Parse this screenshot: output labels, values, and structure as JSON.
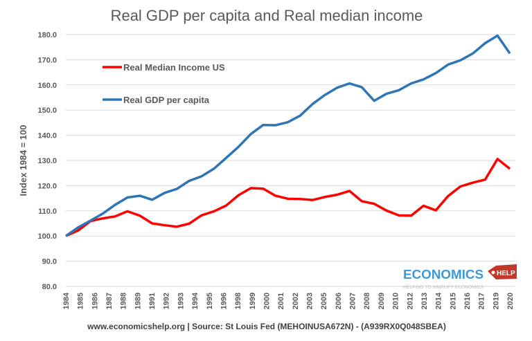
{
  "chart_data": {
    "type": "line",
    "title": "Real GDP per capita and Real median income",
    "ylabel": "Index 1984 = 100",
    "xlabel": "",
    "ylim": [
      80,
      180
    ],
    "yticks": [
      "80.0",
      "90.0",
      "100.0",
      "110.0",
      "120.0",
      "130.0",
      "140.0",
      "150.0",
      "160.0",
      "170.0",
      "180.0"
    ],
    "xtick_labels": [
      "1984",
      "1985",
      "1986",
      "1987",
      "1988",
      "1989",
      "1991",
      "1992",
      "1993",
      "1994",
      "1995",
      "1996",
      "1998",
      "1999",
      "2000",
      "2001",
      "2002",
      "2003",
      "2005",
      "2006",
      "2007",
      "2008",
      "2009",
      "2010",
      "2012",
      "2013",
      "2014",
      "2015",
      "2016",
      "2017",
      "2019",
      "2020"
    ],
    "x": [
      1984,
      1985,
      1986,
      1987,
      1988,
      1989,
      1990,
      1991,
      1992,
      1993,
      1994,
      1995,
      1996,
      1997,
      1998,
      1999,
      2000,
      2001,
      2002,
      2003,
      2004,
      2005,
      2006,
      2007,
      2008,
      2009,
      2010,
      2011,
      2012,
      2013,
      2014,
      2015,
      2016,
      2017,
      2018,
      2019,
      2020
    ],
    "grid": true,
    "legend": "top-left",
    "series": [
      {
        "name": "Real Median Income US",
        "color": "#ff0000",
        "values": [
          100,
          102.2,
          105.9,
          107.0,
          107.8,
          109.8,
          108.1,
          105.0,
          104.3,
          103.7,
          104.9,
          108.2,
          109.8,
          112.1,
          116.2,
          119.0,
          118.8,
          116.0,
          114.8,
          114.7,
          114.3,
          115.5,
          116.4,
          117.9,
          113.8,
          112.8,
          110.1,
          108.2,
          108.1,
          112.0,
          110.2,
          115.9,
          119.7,
          121.2,
          122.4,
          130.6,
          126.7
        ]
      },
      {
        "name": "Real GDP per capita",
        "color": "#2e75b6",
        "values": [
          100,
          103.4,
          106.1,
          108.9,
          112.4,
          115.3,
          116.0,
          114.4,
          117.1,
          118.7,
          121.9,
          123.7,
          126.7,
          131.0,
          135.4,
          140.5,
          144.1,
          144.0,
          145.2,
          147.8,
          152.4,
          156.0,
          158.9,
          160.6,
          159.1,
          153.7,
          156.5,
          157.9,
          160.6,
          162.2,
          164.7,
          168.1,
          169.8,
          172.5,
          176.6,
          179.6,
          172.5
        ]
      }
    ],
    "footer": "www.economicshelp.org | Source: St Louis Fed (MEHOINUSA672N) - (A939RX0Q048SBEA)"
  },
  "logo": {
    "main": "ECONOMICS",
    "tag": "HELP",
    "tagline": "HELPING TO SIMPLIFY ECONOMICS",
    "blue": "#3a9ad9",
    "red": "#c0392b"
  }
}
